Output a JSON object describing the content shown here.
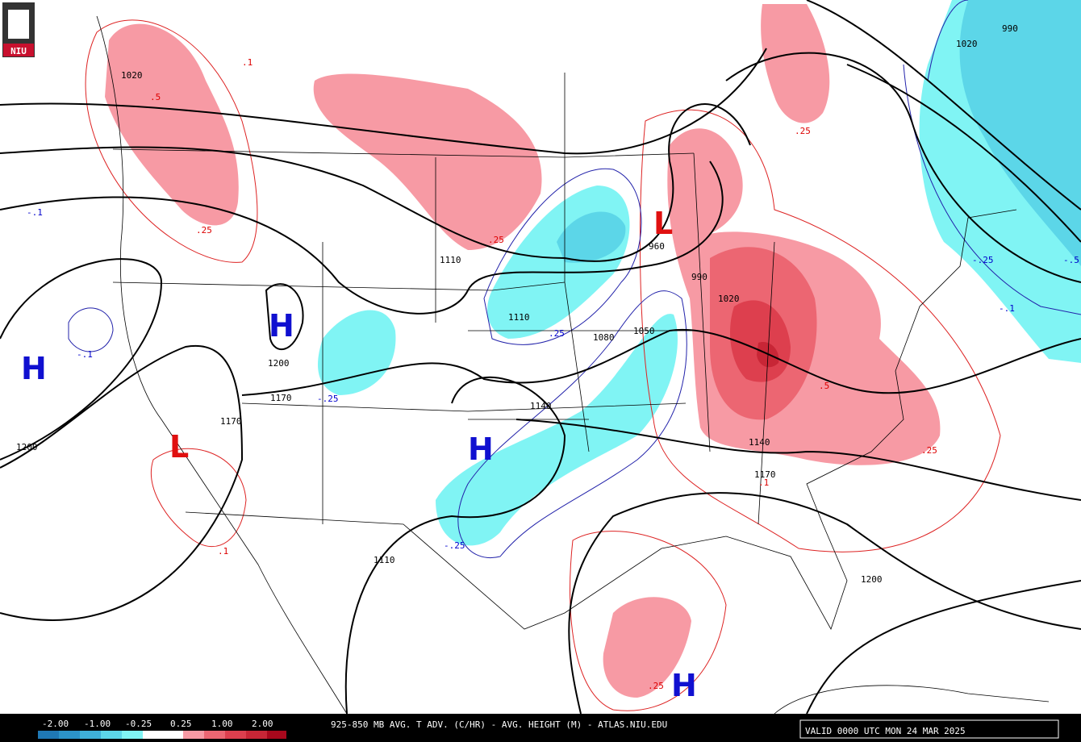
{
  "logo": "NIU",
  "footer": {
    "title": "925-850 MB AVG. T ADV. (C/HR) - AVG. HEIGHT (M) - ATLAS.NIU.EDU",
    "valid": "VALID 0000 UTC MON 24 MAR 2025",
    "colorbar_labels": [
      "-2.00",
      "-1.00",
      "-0.25",
      "0.25",
      "1.00",
      "2.00"
    ]
  },
  "pressure_centers": [
    "H",
    "H",
    "H",
    "H",
    "L",
    "L"
  ],
  "height_labels": [
    "1020",
    "1110",
    "1110",
    "1080",
    "1050",
    "1200",
    "1170",
    "1170",
    "1140",
    "1200",
    "1020",
    "990",
    "960",
    "1140",
    "1170",
    "1110",
    "1200",
    "1020",
    "990"
  ],
  "warm_labels": [
    ".1",
    ".5",
    ".25",
    ".25",
    ".25",
    ".1",
    ".1",
    ".25",
    ".25",
    ".5"
  ],
  "cold_labels": [
    "-.1",
    "-.1",
    "-.25",
    "-.25",
    "-.1",
    "-.25",
    ".25",
    "-.5"
  ]
}
